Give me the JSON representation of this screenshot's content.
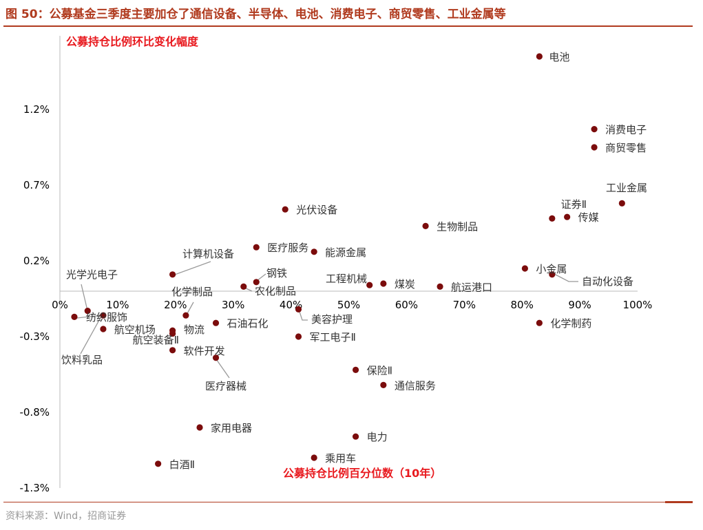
{
  "figure": {
    "title": "图 50：公募基金三季度主要加仓了通信设备、半导体、电池、消费电子、商贸零售、工业金属等",
    "source": "资料来源：Wind，招商证券"
  },
  "colors": {
    "accent": "#b03a1e",
    "point": "#7b0c0c",
    "axis": "#000000",
    "label": "#333333",
    "leader": "#999999"
  },
  "chart_data": {
    "type": "scatter",
    "title": "",
    "xlabel": "公募持仓比例百分位数（10年）",
    "ylabel": "公募持仓比例环比变化幅度",
    "xlim": [
      0,
      100
    ],
    "ylim": [
      -1.3,
      1.55
    ],
    "x_ticks": [
      0,
      10,
      20,
      30,
      40,
      50,
      60,
      70,
      80,
      90,
      100
    ],
    "x_tick_labels": [
      "0%",
      "10%",
      "20%",
      "30%",
      "40%",
      "50%",
      "60%",
      "70%",
      "80%",
      "90%",
      "100%"
    ],
    "y_ticks": [
      1.2,
      0.7,
      0.2,
      -0.3,
      -0.8,
      -1.3
    ],
    "y_tick_labels": [
      "1.2%",
      "0.7%",
      "0.2%",
      "-0.3%",
      "-0.8%",
      "-1.3%"
    ],
    "points": [
      {
        "label": "电池",
        "x": 83.0,
        "y": 1.55
      },
      {
        "label": "消费电子",
        "x": 92.5,
        "y": 1.07
      },
      {
        "label": "商贸零售",
        "x": 92.5,
        "y": 0.95
      },
      {
        "label": "工业金属",
        "x": 97.3,
        "y": 0.58
      },
      {
        "label": "证券Ⅱ",
        "x": 85.2,
        "y": 0.48
      },
      {
        "label": "传媒",
        "x": 87.8,
        "y": 0.49
      },
      {
        "label": "光伏设备",
        "x": 39.0,
        "y": 0.54
      },
      {
        "label": "生物制品",
        "x": 63.3,
        "y": 0.43
      },
      {
        "label": "医疗服务",
        "x": 34.0,
        "y": 0.29
      },
      {
        "label": "能源金属",
        "x": 44.0,
        "y": 0.26
      },
      {
        "label": "计算机设备",
        "x": 19.5,
        "y": 0.11
      },
      {
        "label": "小金属",
        "x": 80.5,
        "y": 0.15
      },
      {
        "label": "自动化设备",
        "x": 85.2,
        "y": 0.11
      },
      {
        "label": "钢铁",
        "x": 34.0,
        "y": 0.06
      },
      {
        "label": "农化制品",
        "x": 31.8,
        "y": 0.03
      },
      {
        "label": "工程机械",
        "x": 53.6,
        "y": 0.04
      },
      {
        "label": "煤炭",
        "x": 56.0,
        "y": 0.05
      },
      {
        "label": "航运港口",
        "x": 65.8,
        "y": 0.03
      },
      {
        "label": "化学制品",
        "x": 21.8,
        "y": -0.16
      },
      {
        "label": "光学光电子",
        "x": 4.8,
        "y": -0.13
      },
      {
        "label": "纺织服饰",
        "x": 7.5,
        "y": -0.16
      },
      {
        "label": "饮料乳品",
        "x": 2.5,
        "y": -0.17
      },
      {
        "label": "航空机场",
        "x": 7.5,
        "y": -0.25
      },
      {
        "label": "航空装备Ⅱ",
        "x": 19.5,
        "y": -0.26
      },
      {
        "label": "物流",
        "x": 19.5,
        "y": -0.28
      },
      {
        "label": "石油石化",
        "x": 27.0,
        "y": -0.21
      },
      {
        "label": "美容护理",
        "x": 41.3,
        "y": -0.12
      },
      {
        "label": "军工电子Ⅱ",
        "x": 41.3,
        "y": -0.3
      },
      {
        "label": "化学制药",
        "x": 83.0,
        "y": -0.21
      },
      {
        "label": "软件开发",
        "x": 19.5,
        "y": -0.39
      },
      {
        "label": "医疗器械",
        "x": 27.0,
        "y": -0.44
      },
      {
        "label": "保险Ⅱ",
        "x": 51.2,
        "y": -0.52
      },
      {
        "label": "通信服务",
        "x": 56.0,
        "y": -0.62
      },
      {
        "label": "家用电器",
        "x": 24.2,
        "y": -0.9
      },
      {
        "label": "电力",
        "x": 51.2,
        "y": -0.96
      },
      {
        "label": "乘用车",
        "x": 44.0,
        "y": -1.1
      },
      {
        "label": "白酒Ⅱ",
        "x": 17.0,
        "y": -1.14
      }
    ]
  }
}
